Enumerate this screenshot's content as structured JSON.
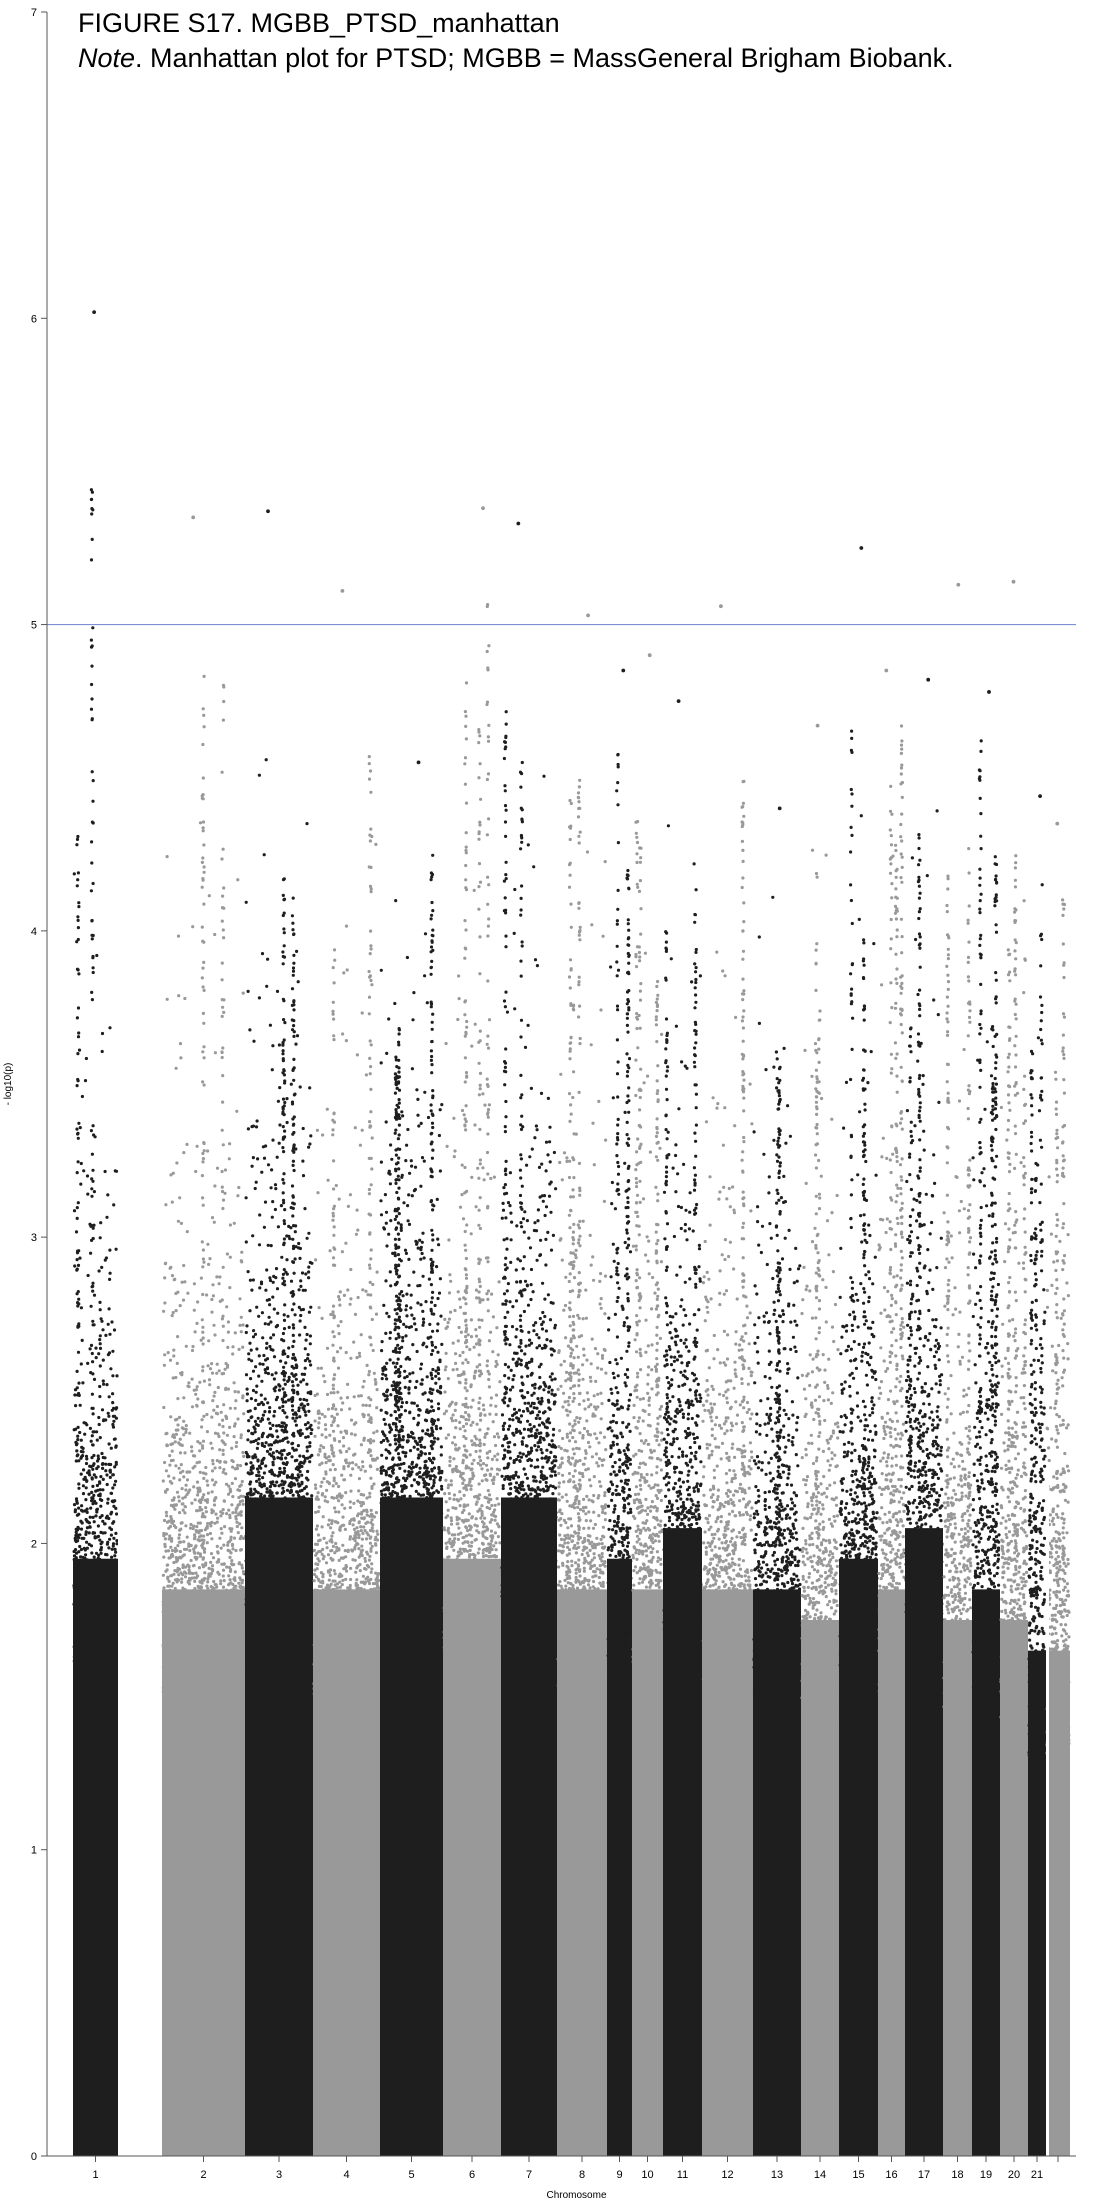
{
  "figure": {
    "title": "FIGURE S17. MGBB_PTSD_manhattan",
    "note_label": "Note",
    "note_text": ". Manhattan plot for PTSD; MGBB = MassGeneral Brigham Biobank."
  },
  "chart_data": {
    "type": "scatter",
    "subtype": "manhattan",
    "xlabel": "Chromosome",
    "ylabel": "- log10(p)",
    "ylim": [
      0,
      7
    ],
    "yticks": [
      0,
      1,
      2,
      3,
      4,
      5,
      6,
      7
    ],
    "grid": false,
    "legend": "none",
    "significance_line": {
      "y": 5,
      "color": "#7f8fd6"
    },
    "colors": {
      "odd_chromosomes": "#1e1e1e",
      "even_chromosomes": "#999999"
    },
    "chromosomes": [
      {
        "chr": 1,
        "label": "1",
        "color_group": "odd",
        "max_y": 6.02,
        "dense_top": 2.1
      },
      {
        "chr": 2,
        "label": "2",
        "color_group": "even",
        "max_y": 5.35,
        "dense_top": 2.0
      },
      {
        "chr": 3,
        "label": "3",
        "color_group": "odd",
        "max_y": 5.37,
        "dense_top": 2.3
      },
      {
        "chr": 4,
        "label": "4",
        "color_group": "even",
        "max_y": 5.11,
        "dense_top": 2.0
      },
      {
        "chr": 5,
        "label": "5",
        "color_group": "odd",
        "max_y": 4.55,
        "dense_top": 2.3
      },
      {
        "chr": 6,
        "label": "6",
        "color_group": "even",
        "max_y": 5.38,
        "dense_top": 2.1
      },
      {
        "chr": 7,
        "label": "7",
        "color_group": "odd",
        "max_y": 5.33,
        "dense_top": 2.3
      },
      {
        "chr": 8,
        "label": "8",
        "color_group": "even",
        "max_y": 5.03,
        "dense_top": 2.0
      },
      {
        "chr": 9,
        "label": "9",
        "color_group": "odd",
        "max_y": 4.85,
        "dense_top": 2.1
      },
      {
        "chr": 10,
        "label": "10",
        "color_group": "even",
        "max_y": 4.9,
        "dense_top": 2.0
      },
      {
        "chr": 11,
        "label": "11",
        "color_group": "odd",
        "max_y": 4.75,
        "dense_top": 2.2
      },
      {
        "chr": 12,
        "label": "12",
        "color_group": "even",
        "max_y": 5.06,
        "dense_top": 2.0
      },
      {
        "chr": 13,
        "label": "13",
        "color_group": "odd",
        "max_y": 4.4,
        "dense_top": 2.0
      },
      {
        "chr": 14,
        "label": "14",
        "color_group": "even",
        "max_y": 4.67,
        "dense_top": 1.9
      },
      {
        "chr": 15,
        "label": "15",
        "color_group": "odd",
        "max_y": 5.25,
        "dense_top": 2.1
      },
      {
        "chr": 16,
        "label": "16",
        "color_group": "even",
        "max_y": 4.85,
        "dense_top": 2.0
      },
      {
        "chr": 17,
        "label": "17",
        "color_group": "odd",
        "max_y": 4.82,
        "dense_top": 2.2
      },
      {
        "chr": 18,
        "label": "18",
        "color_group": "even",
        "max_y": 5.13,
        "dense_top": 1.9
      },
      {
        "chr": 19,
        "label": "19",
        "color_group": "odd",
        "max_y": 4.78,
        "dense_top": 2.0
      },
      {
        "chr": 20,
        "label": "20",
        "color_group": "even",
        "max_y": 5.14,
        "dense_top": 1.9
      },
      {
        "chr": 21,
        "label": "21",
        "color_group": "odd",
        "max_y": 4.44,
        "dense_top": 1.8
      },
      {
        "chr": 22,
        "label": "",
        "color_group": "even",
        "max_y": 4.35,
        "dense_top": 1.8
      }
    ]
  }
}
